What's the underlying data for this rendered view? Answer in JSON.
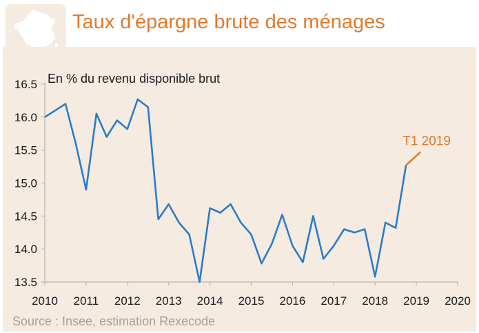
{
  "title": "Taux d'épargne brute des ménages",
  "source": "Source : Insee, estimation Rexecode",
  "icon": "france-map-icon",
  "colors": {
    "accent": "#e07a2e",
    "line": "#2a7cc7",
    "panel": "#f5ebe1",
    "source": "#a7a097"
  },
  "chart_data": {
    "type": "line",
    "title": "Taux d'épargne brute des ménages",
    "ylabel": "En % du revenu disponible brut",
    "xlabel": "",
    "xlim": [
      2010,
      2020
    ],
    "ylim": [
      13.5,
      16.5
    ],
    "x_ticks": [
      "2010",
      "2011",
      "2012",
      "2013",
      "2014",
      "2015",
      "2016",
      "2017",
      "2018",
      "2019",
      "2020"
    ],
    "y_ticks": [
      "13.5",
      "14.0",
      "14.5",
      "15.0",
      "15.5",
      "16.0",
      "16.5"
    ],
    "grid": false,
    "series": [
      {
        "x": [
          2010.0,
          2010.25,
          2010.5,
          2010.75,
          2011.0,
          2011.25,
          2011.5,
          2011.75,
          2012.0,
          2012.25,
          2012.5,
          2012.75,
          2013.0,
          2013.25,
          2013.5,
          2013.75,
          2014.0,
          2014.25,
          2014.5,
          2014.75,
          2015.0,
          2015.25,
          2015.5,
          2015.75,
          2016.0,
          2016.25,
          2016.5,
          2016.75,
          2017.0,
          2017.25,
          2017.5,
          2017.75,
          2018.0,
          2018.25,
          2018.5,
          2018.75
        ],
        "values": [
          16.0,
          16.1,
          16.2,
          15.6,
          14.9,
          16.05,
          15.7,
          15.95,
          15.82,
          16.27,
          16.15,
          14.45,
          14.68,
          14.4,
          14.22,
          13.5,
          14.62,
          14.55,
          14.68,
          14.4,
          14.22,
          13.78,
          14.08,
          14.52,
          14.05,
          13.8,
          14.5,
          13.85,
          14.05,
          14.3,
          14.25,
          14.3,
          13.58,
          14.4,
          14.32,
          15.27
        ]
      }
    ],
    "annotations": [
      {
        "text": "T1 2019",
        "x": 2019.0,
        "y": 15.45
      }
    ]
  }
}
